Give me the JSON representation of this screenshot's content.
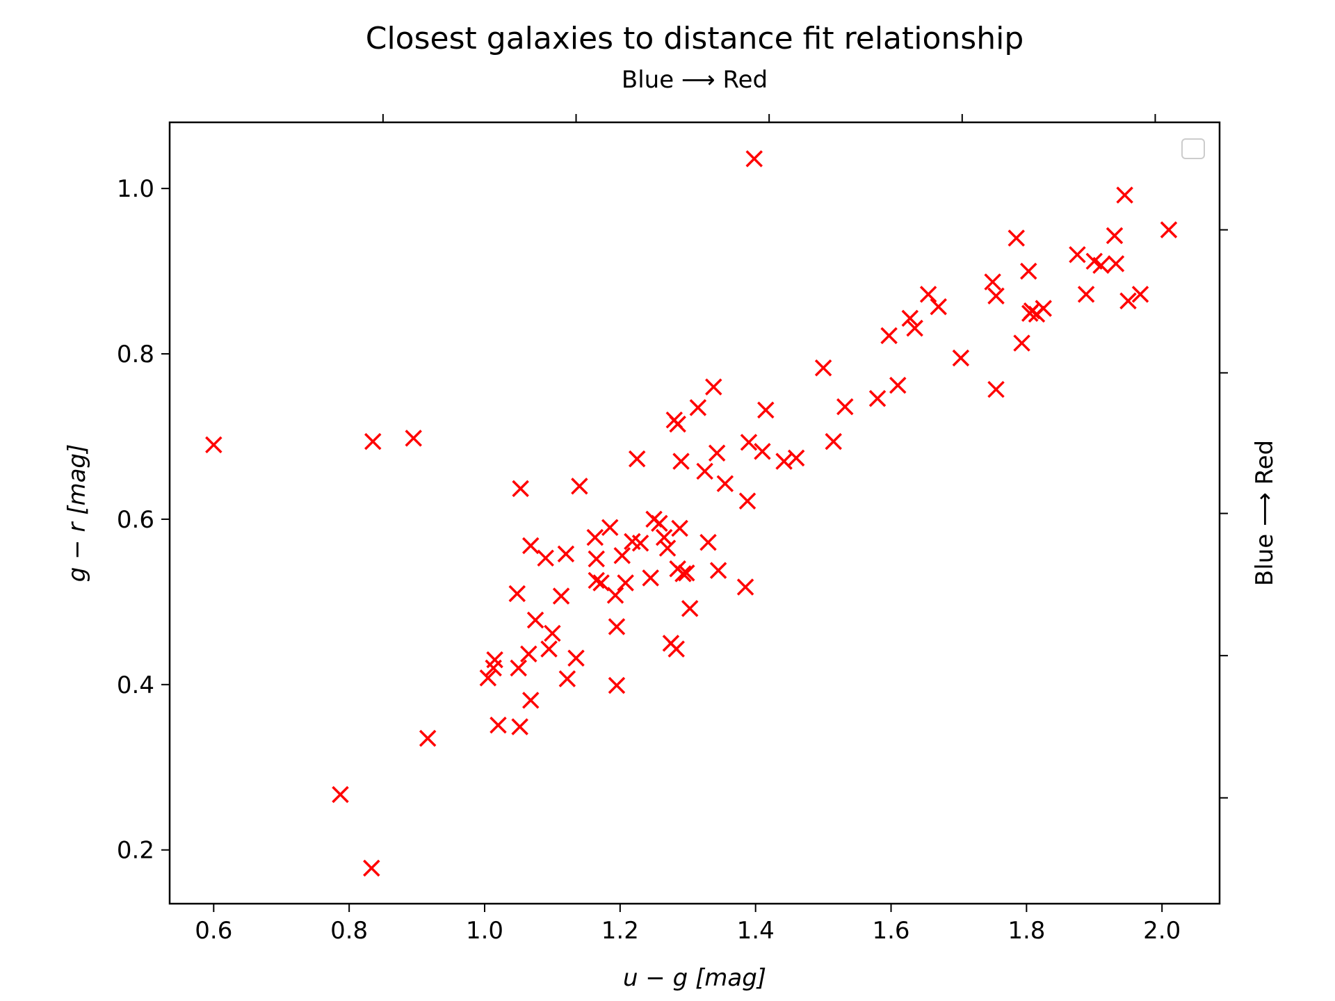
{
  "chart_data": {
    "type": "scatter",
    "title": "Closest galaxies to distance fit relationship",
    "top_label": "Blue ⟶ Red",
    "right_label": "Blue ⟶ Red",
    "xlabel": "u − g [mag]",
    "ylabel": "g − r [mag]",
    "xlim": [
      0.535,
      2.085
    ],
    "ylim": [
      0.135,
      1.08
    ],
    "xticks": [
      0.6,
      0.8,
      1.0,
      1.2,
      1.4,
      1.6,
      1.8,
      2.0
    ],
    "xtick_labels": [
      "0.6",
      "0.8",
      "1.0",
      "1.2",
      "1.4",
      "1.6",
      "1.8",
      "2.0"
    ],
    "yticks": [
      0.2,
      0.4,
      0.6,
      0.8,
      1.0
    ],
    "ytick_labels": [
      "0.2",
      "0.4",
      "0.6",
      "0.8",
      "1.0"
    ],
    "marker": "x",
    "marker_color": "#ff0000",
    "legend": "top-right (empty)",
    "grid": false,
    "points": [
      [
        0.6,
        0.69
      ],
      [
        0.787,
        0.267
      ],
      [
        0.833,
        0.178
      ],
      [
        0.835,
        0.694
      ],
      [
        0.895,
        0.698
      ],
      [
        0.916,
        0.335
      ],
      [
        1.005,
        0.408
      ],
      [
        1.013,
        0.42
      ],
      [
        1.015,
        0.43
      ],
      [
        1.02,
        0.351
      ],
      [
        1.048,
        0.51
      ],
      [
        1.05,
        0.42
      ],
      [
        1.052,
        0.349
      ],
      [
        1.053,
        0.637
      ],
      [
        1.065,
        0.437
      ],
      [
        1.068,
        0.381
      ],
      [
        1.068,
        0.568
      ],
      [
        1.075,
        0.478
      ],
      [
        1.09,
        0.553
      ],
      [
        1.095,
        0.443
      ],
      [
        1.1,
        0.462
      ],
      [
        1.113,
        0.507
      ],
      [
        1.12,
        0.558
      ],
      [
        1.122,
        0.407
      ],
      [
        1.135,
        0.432
      ],
      [
        1.14,
        0.64
      ],
      [
        1.163,
        0.578
      ],
      [
        1.165,
        0.552
      ],
      [
        1.165,
        0.526
      ],
      [
        1.172,
        0.523
      ],
      [
        1.185,
        0.59
      ],
      [
        1.193,
        0.508
      ],
      [
        1.195,
        0.47
      ],
      [
        1.195,
        0.399
      ],
      [
        1.203,
        0.556
      ],
      [
        1.208,
        0.523
      ],
      [
        1.218,
        0.573
      ],
      [
        1.225,
        0.673
      ],
      [
        1.23,
        0.571
      ],
      [
        1.245,
        0.529
      ],
      [
        1.25,
        0.6
      ],
      [
        1.258,
        0.595
      ],
      [
        1.265,
        0.578
      ],
      [
        1.27,
        0.565
      ],
      [
        1.275,
        0.45
      ],
      [
        1.28,
        0.72
      ],
      [
        1.283,
        0.443
      ],
      [
        1.285,
        0.715
      ],
      [
        1.285,
        0.54
      ],
      [
        1.288,
        0.589
      ],
      [
        1.29,
        0.67
      ],
      [
        1.293,
        0.534
      ],
      [
        1.298,
        0.535
      ],
      [
        1.303,
        0.492
      ],
      [
        1.315,
        0.735
      ],
      [
        1.325,
        0.658
      ],
      [
        1.33,
        0.572
      ],
      [
        1.338,
        0.76
      ],
      [
        1.343,
        0.68
      ],
      [
        1.345,
        0.538
      ],
      [
        1.355,
        0.643
      ],
      [
        1.385,
        0.518
      ],
      [
        1.388,
        0.622
      ],
      [
        1.39,
        0.693
      ],
      [
        1.398,
        1.036
      ],
      [
        1.41,
        0.682
      ],
      [
        1.415,
        0.732
      ],
      [
        1.442,
        0.67
      ],
      [
        1.46,
        0.674
      ],
      [
        1.5,
        0.783
      ],
      [
        1.515,
        0.694
      ],
      [
        1.532,
        0.736
      ],
      [
        1.58,
        0.746
      ],
      [
        1.597,
        0.822
      ],
      [
        1.61,
        0.762
      ],
      [
        1.628,
        0.843
      ],
      [
        1.635,
        0.831
      ],
      [
        1.655,
        0.872
      ],
      [
        1.67,
        0.857
      ],
      [
        1.703,
        0.795
      ],
      [
        1.75,
        0.887
      ],
      [
        1.755,
        0.87
      ],
      [
        1.755,
        0.757
      ],
      [
        1.785,
        0.94
      ],
      [
        1.793,
        0.813
      ],
      [
        1.803,
        0.9
      ],
      [
        1.805,
        0.849
      ],
      [
        1.808,
        0.852
      ],
      [
        1.815,
        0.848
      ],
      [
        1.825,
        0.855
      ],
      [
        1.875,
        0.92
      ],
      [
        1.888,
        0.872
      ],
      [
        1.9,
        0.912
      ],
      [
        1.91,
        0.907
      ],
      [
        1.93,
        0.943
      ],
      [
        1.932,
        0.909
      ],
      [
        1.945,
        0.992
      ],
      [
        1.95,
        0.864
      ],
      [
        1.968,
        0.872
      ],
      [
        2.01,
        0.95
      ]
    ]
  }
}
